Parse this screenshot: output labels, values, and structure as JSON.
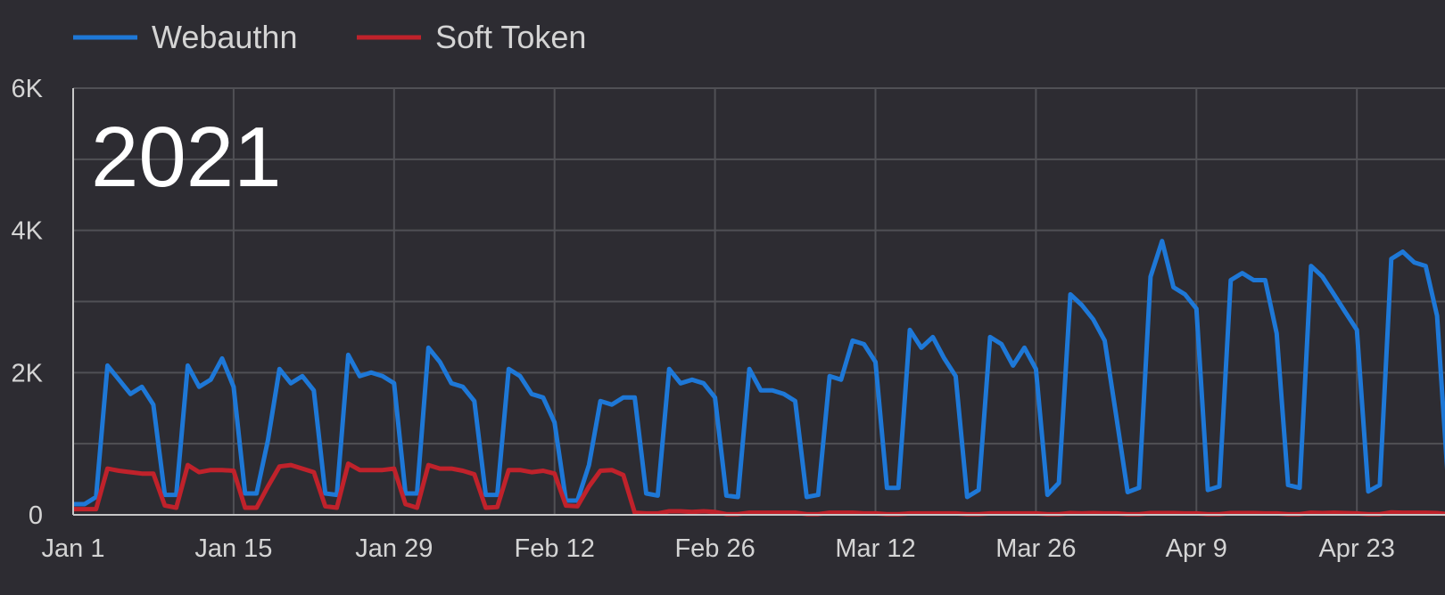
{
  "chart_data": {
    "type": "line",
    "title": "",
    "annotation": "2021",
    "xlabel": "",
    "ylabel": "",
    "x_start": "2021-01-01",
    "x_end": "2021-05-01",
    "x_ticks": [
      {
        "date": "2021-01-01",
        "label": "Jan 1"
      },
      {
        "date": "2021-01-15",
        "label": "Jan 15"
      },
      {
        "date": "2021-01-29",
        "label": "Jan 29"
      },
      {
        "date": "2021-02-12",
        "label": "Feb 12"
      },
      {
        "date": "2021-02-26",
        "label": "Feb 26"
      },
      {
        "date": "2021-03-12",
        "label": "Mar 12"
      },
      {
        "date": "2021-03-26",
        "label": "Mar 26"
      },
      {
        "date": "2021-04-09",
        "label": "Apr 9"
      },
      {
        "date": "2021-04-23",
        "label": "Apr 23"
      }
    ],
    "y_ticks": [
      {
        "value": 0,
        "label": "0"
      },
      {
        "value": 2000,
        "label": "2K"
      },
      {
        "value": 4000,
        "label": "4K"
      },
      {
        "value": 6000,
        "label": "6K"
      }
    ],
    "ylim": [
      0,
      6000
    ],
    "grid": true,
    "legend": "top-left",
    "series": [
      {
        "name": "Webauthn",
        "color": "#1e78d7",
        "points": [
          [
            "2021-01-01",
            150
          ],
          [
            "2021-01-02",
            150
          ],
          [
            "2021-01-03",
            250
          ],
          [
            "2021-01-04",
            2100
          ],
          [
            "2021-01-05",
            1900
          ],
          [
            "2021-01-06",
            1700
          ],
          [
            "2021-01-07",
            1800
          ],
          [
            "2021-01-08",
            1550
          ],
          [
            "2021-01-09",
            280
          ],
          [
            "2021-01-10",
            280
          ],
          [
            "2021-01-11",
            2100
          ],
          [
            "2021-01-12",
            1800
          ],
          [
            "2021-01-13",
            1900
          ],
          [
            "2021-01-14",
            2200
          ],
          [
            "2021-01-15",
            1800
          ],
          [
            "2021-01-16",
            300
          ],
          [
            "2021-01-17",
            300
          ],
          [
            "2021-01-18",
            1050
          ],
          [
            "2021-01-19",
            2050
          ],
          [
            "2021-01-20",
            1850
          ],
          [
            "2021-01-21",
            1950
          ],
          [
            "2021-01-22",
            1750
          ],
          [
            "2021-01-23",
            300
          ],
          [
            "2021-01-24",
            280
          ],
          [
            "2021-01-25",
            2250
          ],
          [
            "2021-01-26",
            1950
          ],
          [
            "2021-01-27",
            2000
          ],
          [
            "2021-01-28",
            1950
          ],
          [
            "2021-01-29",
            1850
          ],
          [
            "2021-01-30",
            300
          ],
          [
            "2021-01-31",
            300
          ],
          [
            "2021-02-01",
            2350
          ],
          [
            "2021-02-02",
            2150
          ],
          [
            "2021-02-03",
            1850
          ],
          [
            "2021-02-04",
            1800
          ],
          [
            "2021-02-05",
            1600
          ],
          [
            "2021-02-06",
            280
          ],
          [
            "2021-02-07",
            280
          ],
          [
            "2021-02-08",
            2050
          ],
          [
            "2021-02-09",
            1950
          ],
          [
            "2021-02-10",
            1700
          ],
          [
            "2021-02-11",
            1650
          ],
          [
            "2021-02-12",
            1300
          ],
          [
            "2021-02-13",
            200
          ],
          [
            "2021-02-14",
            200
          ],
          [
            "2021-02-15",
            700
          ],
          [
            "2021-02-16",
            1600
          ],
          [
            "2021-02-17",
            1550
          ],
          [
            "2021-02-18",
            1650
          ],
          [
            "2021-02-19",
            1650
          ],
          [
            "2021-02-20",
            300
          ],
          [
            "2021-02-21",
            270
          ],
          [
            "2021-02-22",
            2050
          ],
          [
            "2021-02-23",
            1850
          ],
          [
            "2021-02-24",
            1900
          ],
          [
            "2021-02-25",
            1850
          ],
          [
            "2021-02-26",
            1650
          ],
          [
            "2021-02-27",
            270
          ],
          [
            "2021-02-28",
            250
          ],
          [
            "2021-03-01",
            2050
          ],
          [
            "2021-03-02",
            1750
          ],
          [
            "2021-03-03",
            1750
          ],
          [
            "2021-03-04",
            1700
          ],
          [
            "2021-03-05",
            1600
          ],
          [
            "2021-03-06",
            250
          ],
          [
            "2021-03-07",
            280
          ],
          [
            "2021-03-08",
            1950
          ],
          [
            "2021-03-09",
            1900
          ],
          [
            "2021-03-10",
            2450
          ],
          [
            "2021-03-11",
            2400
          ],
          [
            "2021-03-12",
            2150
          ],
          [
            "2021-03-13",
            380
          ],
          [
            "2021-03-14",
            380
          ],
          [
            "2021-03-15",
            2600
          ],
          [
            "2021-03-16",
            2350
          ],
          [
            "2021-03-17",
            2500
          ],
          [
            "2021-03-18",
            2200
          ],
          [
            "2021-03-19",
            1950
          ],
          [
            "2021-03-20",
            250
          ],
          [
            "2021-03-21",
            350
          ],
          [
            "2021-03-22",
            2500
          ],
          [
            "2021-03-23",
            2400
          ],
          [
            "2021-03-24",
            2100
          ],
          [
            "2021-03-25",
            2350
          ],
          [
            "2021-03-26",
            2050
          ],
          [
            "2021-03-27",
            280
          ],
          [
            "2021-03-28",
            450
          ],
          [
            "2021-03-29",
            3100
          ],
          [
            "2021-03-30",
            2950
          ],
          [
            "2021-03-31",
            2750
          ],
          [
            "2021-04-01",
            2450
          ],
          [
            "2021-04-02",
            1400
          ],
          [
            "2021-04-03",
            320
          ],
          [
            "2021-04-04",
            380
          ],
          [
            "2021-04-05",
            3350
          ],
          [
            "2021-04-06",
            3850
          ],
          [
            "2021-04-07",
            3200
          ],
          [
            "2021-04-08",
            3100
          ],
          [
            "2021-04-09",
            2900
          ],
          [
            "2021-04-10",
            350
          ],
          [
            "2021-04-11",
            400
          ],
          [
            "2021-04-12",
            3300
          ],
          [
            "2021-04-13",
            3400
          ],
          [
            "2021-04-14",
            3300
          ],
          [
            "2021-04-15",
            3300
          ],
          [
            "2021-04-16",
            2550
          ],
          [
            "2021-04-17",
            420
          ],
          [
            "2021-04-18",
            380
          ],
          [
            "2021-04-19",
            3500
          ],
          [
            "2021-04-20",
            3350
          ],
          [
            "2021-04-21",
            3100
          ],
          [
            "2021-04-22",
            2850
          ],
          [
            "2021-04-23",
            2600
          ],
          [
            "2021-04-24",
            330
          ],
          [
            "2021-04-25",
            420
          ],
          [
            "2021-04-26",
            3600
          ],
          [
            "2021-04-27",
            3700
          ],
          [
            "2021-04-28",
            3550
          ],
          [
            "2021-04-29",
            3500
          ],
          [
            "2021-04-30",
            2800
          ],
          [
            "2021-05-01",
            350
          ]
        ]
      },
      {
        "name": "Soft Token",
        "color": "#c0222b",
        "points": [
          [
            "2021-01-01",
            80
          ],
          [
            "2021-01-02",
            80
          ],
          [
            "2021-01-03",
            80
          ],
          [
            "2021-01-04",
            650
          ],
          [
            "2021-01-05",
            620
          ],
          [
            "2021-01-06",
            600
          ],
          [
            "2021-01-07",
            580
          ],
          [
            "2021-01-08",
            580
          ],
          [
            "2021-01-09",
            130
          ],
          [
            "2021-01-10",
            100
          ],
          [
            "2021-01-11",
            700
          ],
          [
            "2021-01-12",
            600
          ],
          [
            "2021-01-13",
            630
          ],
          [
            "2021-01-14",
            630
          ],
          [
            "2021-01-15",
            620
          ],
          [
            "2021-01-16",
            100
          ],
          [
            "2021-01-17",
            100
          ],
          [
            "2021-01-18",
            400
          ],
          [
            "2021-01-19",
            680
          ],
          [
            "2021-01-20",
            700
          ],
          [
            "2021-01-21",
            650
          ],
          [
            "2021-01-22",
            600
          ],
          [
            "2021-01-23",
            120
          ],
          [
            "2021-01-24",
            100
          ],
          [
            "2021-01-25",
            720
          ],
          [
            "2021-01-26",
            630
          ],
          [
            "2021-01-27",
            630
          ],
          [
            "2021-01-28",
            630
          ],
          [
            "2021-01-29",
            650
          ],
          [
            "2021-01-30",
            150
          ],
          [
            "2021-01-31",
            100
          ],
          [
            "2021-02-01",
            700
          ],
          [
            "2021-02-02",
            650
          ],
          [
            "2021-02-03",
            650
          ],
          [
            "2021-02-04",
            620
          ],
          [
            "2021-02-05",
            570
          ],
          [
            "2021-02-06",
            100
          ],
          [
            "2021-02-07",
            110
          ],
          [
            "2021-02-08",
            630
          ],
          [
            "2021-02-09",
            630
          ],
          [
            "2021-02-10",
            600
          ],
          [
            "2021-02-11",
            620
          ],
          [
            "2021-02-12",
            580
          ],
          [
            "2021-02-13",
            130
          ],
          [
            "2021-02-14",
            120
          ],
          [
            "2021-02-15",
            400
          ],
          [
            "2021-02-16",
            620
          ],
          [
            "2021-02-17",
            630
          ],
          [
            "2021-02-18",
            560
          ],
          [
            "2021-02-19",
            30
          ],
          [
            "2021-02-20",
            20
          ],
          [
            "2021-02-21",
            20
          ],
          [
            "2021-02-22",
            50
          ],
          [
            "2021-02-23",
            50
          ],
          [
            "2021-02-24",
            40
          ],
          [
            "2021-02-25",
            50
          ],
          [
            "2021-02-26",
            40
          ],
          [
            "2021-02-27",
            10
          ],
          [
            "2021-02-28",
            10
          ],
          [
            "2021-03-01",
            30
          ],
          [
            "2021-03-02",
            30
          ],
          [
            "2021-03-03",
            30
          ],
          [
            "2021-03-04",
            30
          ],
          [
            "2021-03-05",
            30
          ],
          [
            "2021-03-06",
            10
          ],
          [
            "2021-03-07",
            10
          ],
          [
            "2021-03-08",
            30
          ],
          [
            "2021-03-09",
            30
          ],
          [
            "2021-03-10",
            30
          ],
          [
            "2021-03-11",
            20
          ],
          [
            "2021-03-12",
            20
          ],
          [
            "2021-03-13",
            10
          ],
          [
            "2021-03-14",
            10
          ],
          [
            "2021-03-15",
            20
          ],
          [
            "2021-03-16",
            20
          ],
          [
            "2021-03-17",
            20
          ],
          [
            "2021-03-18",
            20
          ],
          [
            "2021-03-19",
            20
          ],
          [
            "2021-03-20",
            10
          ],
          [
            "2021-03-21",
            10
          ],
          [
            "2021-03-22",
            20
          ],
          [
            "2021-03-23",
            20
          ],
          [
            "2021-03-24",
            20
          ],
          [
            "2021-03-25",
            20
          ],
          [
            "2021-03-26",
            20
          ],
          [
            "2021-03-27",
            10
          ],
          [
            "2021-03-28",
            10
          ],
          [
            "2021-03-29",
            25
          ],
          [
            "2021-03-30",
            20
          ],
          [
            "2021-03-31",
            25
          ],
          [
            "2021-04-01",
            20
          ],
          [
            "2021-04-02",
            20
          ],
          [
            "2021-04-03",
            10
          ],
          [
            "2021-04-04",
            10
          ],
          [
            "2021-04-05",
            25
          ],
          [
            "2021-04-06",
            25
          ],
          [
            "2021-04-07",
            25
          ],
          [
            "2021-04-08",
            20
          ],
          [
            "2021-04-09",
            20
          ],
          [
            "2021-04-10",
            10
          ],
          [
            "2021-04-11",
            10
          ],
          [
            "2021-04-12",
            25
          ],
          [
            "2021-04-13",
            25
          ],
          [
            "2021-04-14",
            25
          ],
          [
            "2021-04-15",
            20
          ],
          [
            "2021-04-16",
            20
          ],
          [
            "2021-04-17",
            10
          ],
          [
            "2021-04-18",
            10
          ],
          [
            "2021-04-19",
            30
          ],
          [
            "2021-04-20",
            25
          ],
          [
            "2021-04-21",
            30
          ],
          [
            "2021-04-22",
            25
          ],
          [
            "2021-04-23",
            20
          ],
          [
            "2021-04-24",
            10
          ],
          [
            "2021-04-25",
            10
          ],
          [
            "2021-04-26",
            35
          ],
          [
            "2021-04-27",
            30
          ],
          [
            "2021-04-28",
            30
          ],
          [
            "2021-04-29",
            30
          ],
          [
            "2021-04-30",
            25
          ],
          [
            "2021-05-01",
            10
          ]
        ]
      }
    ]
  }
}
